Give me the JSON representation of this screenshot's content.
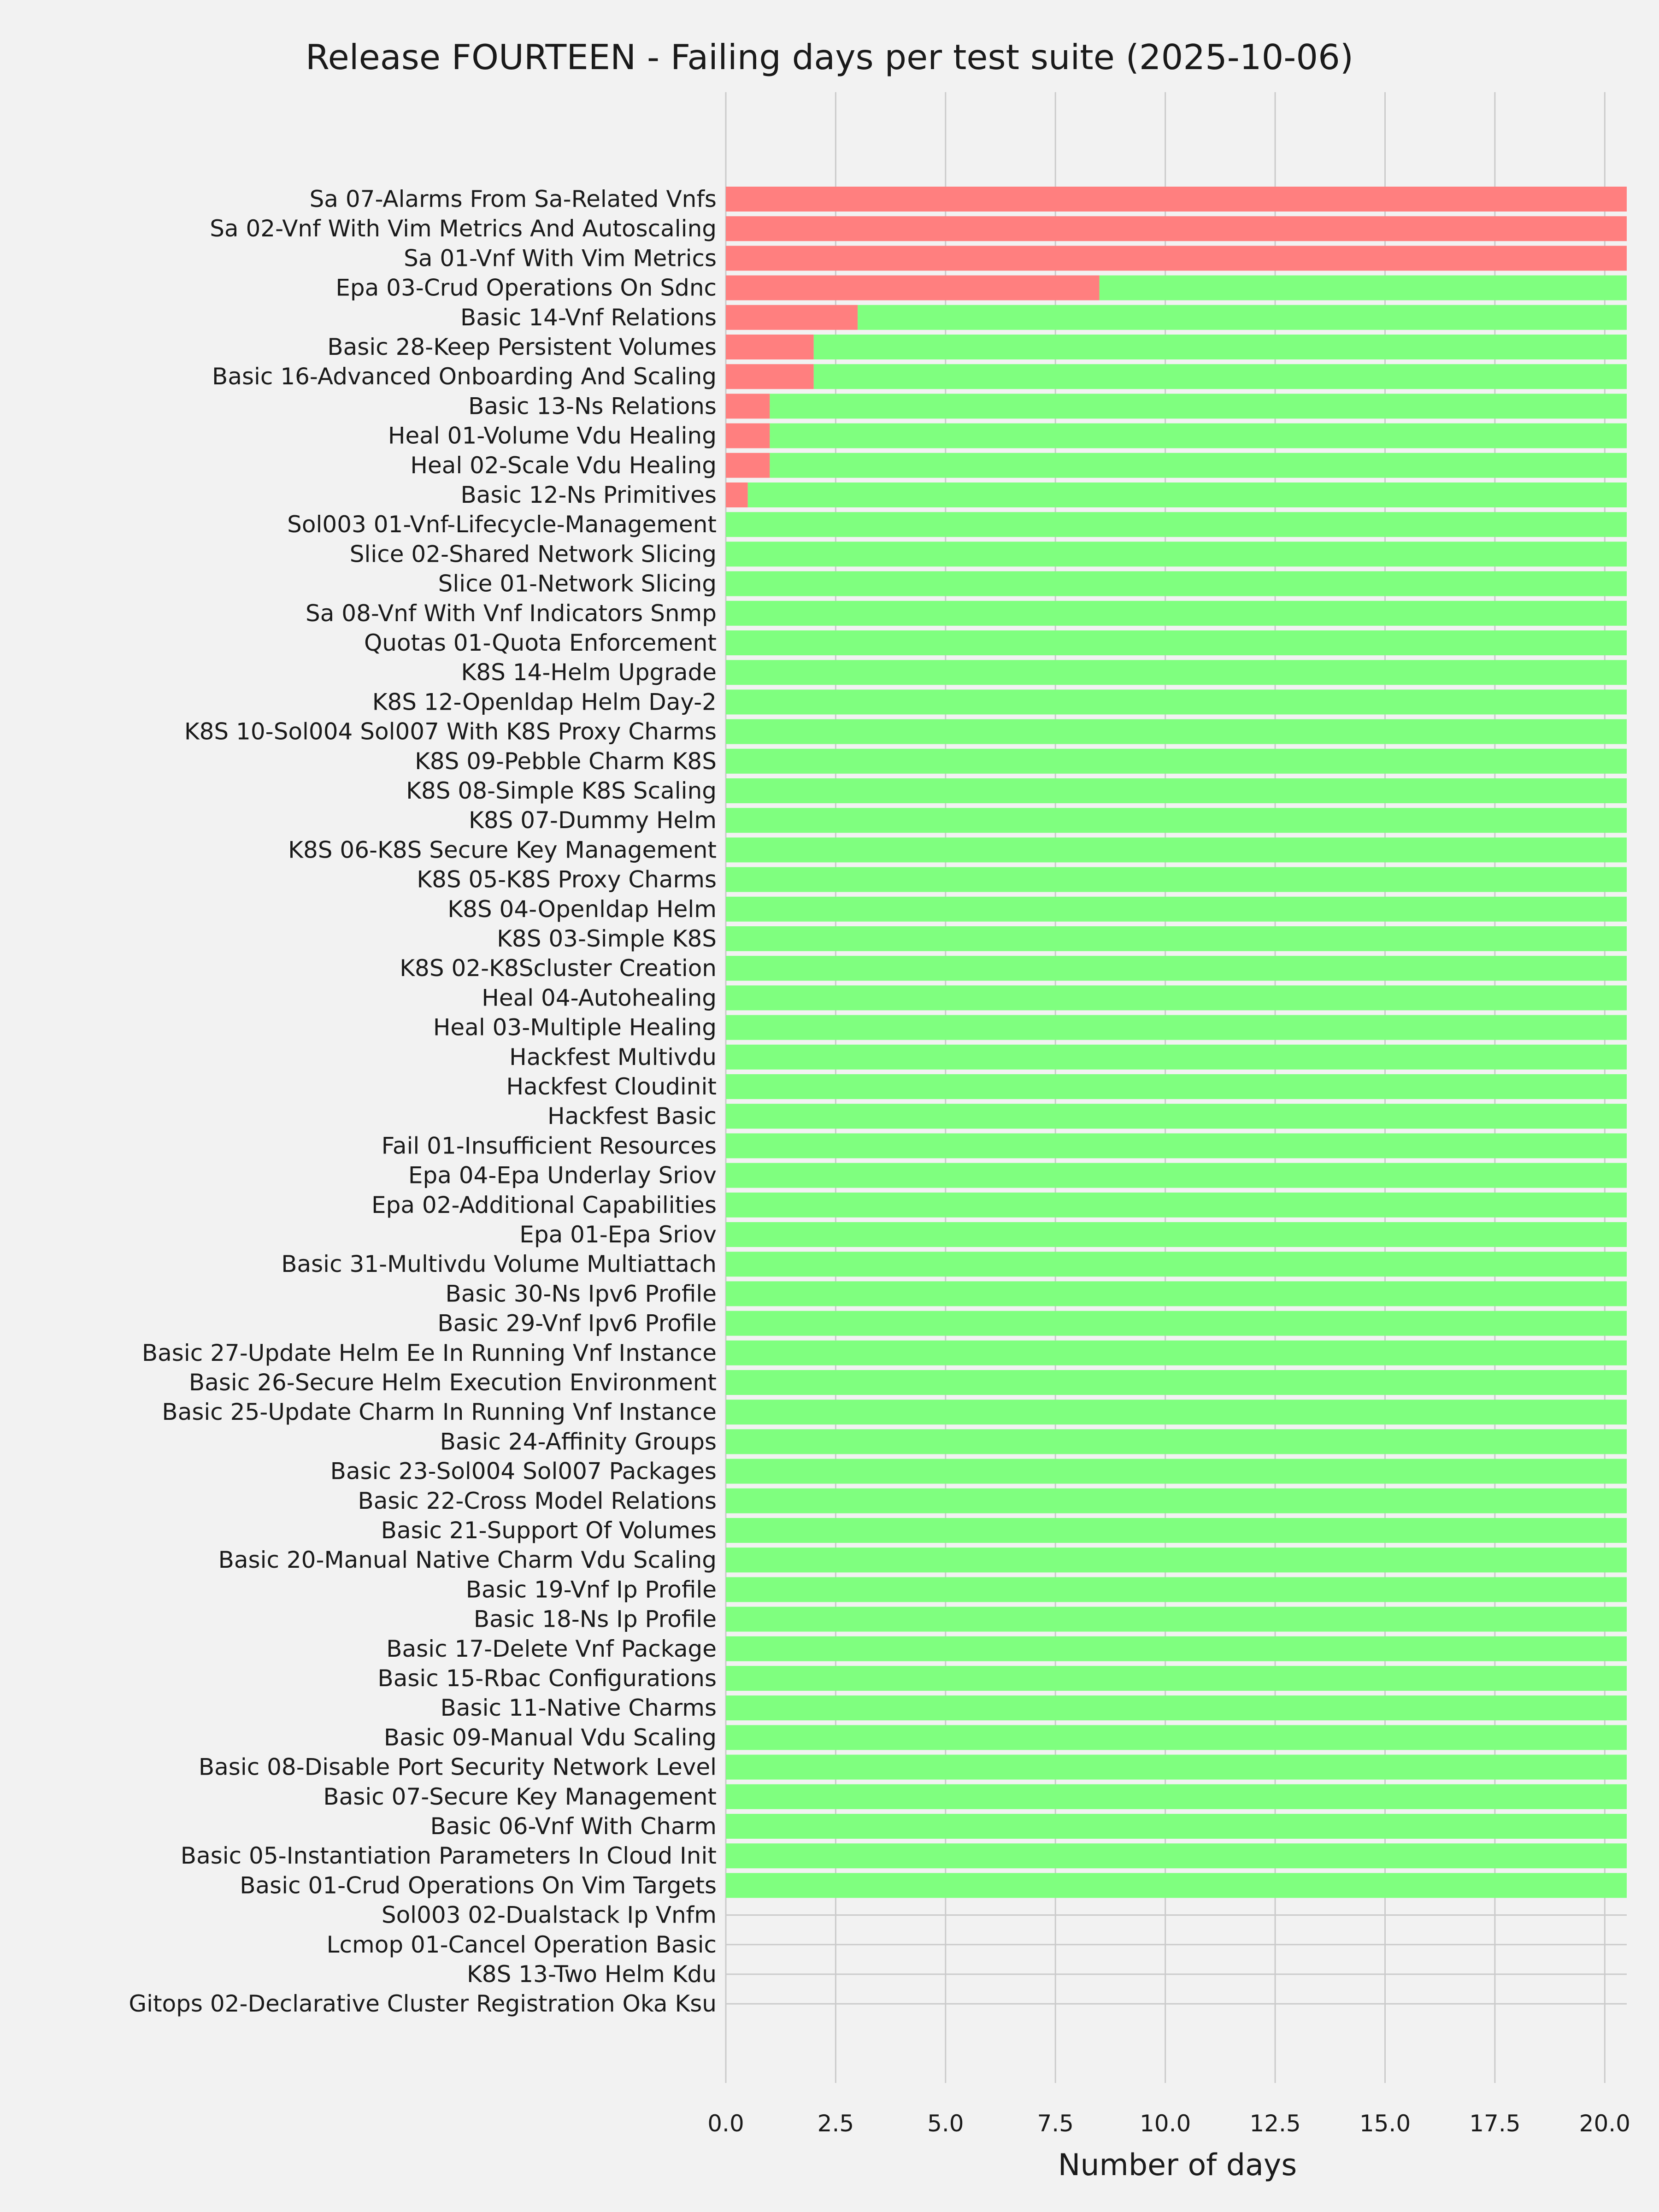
{
  "chart_data": {
    "type": "bar",
    "orientation": "horizontal",
    "stacked": true,
    "title": "Release FOURTEEN - Failing days per test suite (2025-10-06)",
    "xlabel": "Number of days",
    "ylabel": "",
    "xlim": [
      0,
      20.5
    ],
    "xticks": [
      "0.0",
      "2.5",
      "5.0",
      "7.5",
      "10.0",
      "12.5",
      "15.0",
      "17.5",
      "20.0"
    ],
    "grid": true,
    "legend": "none",
    "categories": [
      "Sa 07-Alarms From Sa-Related Vnfs",
      "Sa 02-Vnf With Vim Metrics And Autoscaling",
      "Sa 01-Vnf With Vim Metrics",
      "Epa 03-Crud Operations On Sdnc",
      "Basic 14-Vnf Relations",
      "Basic 28-Keep Persistent Volumes",
      "Basic 16-Advanced Onboarding And Scaling",
      "Basic 13-Ns Relations",
      "Heal 01-Volume Vdu Healing",
      "Heal 02-Scale Vdu Healing",
      "Basic 12-Ns Primitives",
      "Sol003 01-Vnf-Lifecycle-Management",
      "Slice 02-Shared Network Slicing",
      "Slice 01-Network Slicing",
      "Sa 08-Vnf With Vnf Indicators Snmp",
      "Quotas 01-Quota Enforcement",
      "K8S 14-Helm Upgrade",
      "K8S 12-Openldap Helm Day-2",
      "K8S 10-Sol004 Sol007 With K8S Proxy Charms",
      "K8S 09-Pebble Charm K8S",
      "K8S 08-Simple K8S Scaling",
      "K8S 07-Dummy Helm",
      "K8S 06-K8S Secure Key Management",
      "K8S 05-K8S Proxy Charms",
      "K8S 04-Openldap Helm",
      "K8S 03-Simple K8S",
      "K8S 02-K8Scluster Creation",
      "Heal 04-Autohealing",
      "Heal 03-Multiple Healing",
      "Hackfest Multivdu",
      "Hackfest Cloudinit",
      "Hackfest Basic",
      "Fail 01-Insufficient Resources",
      "Epa 04-Epa Underlay Sriov",
      "Epa 02-Additional Capabilities",
      "Epa 01-Epa Sriov",
      "Basic 31-Multivdu Volume Multiattach",
      "Basic 30-Ns Ipv6 Profile",
      "Basic 29-Vnf Ipv6 Profile",
      "Basic 27-Update Helm Ee In Running Vnf Instance",
      "Basic 26-Secure Helm Execution Environment",
      "Basic 25-Update Charm In Running Vnf Instance",
      "Basic 24-Affinity Groups",
      "Basic 23-Sol004 Sol007 Packages",
      "Basic 22-Cross Model Relations",
      "Basic 21-Support Of Volumes",
      "Basic 20-Manual Native Charm Vdu Scaling",
      "Basic 19-Vnf Ip Profile",
      "Basic 18-Ns Ip Profile",
      "Basic 17-Delete Vnf Package",
      "Basic 15-Rbac Configurations",
      "Basic 11-Native Charms",
      "Basic 09-Manual Vdu Scaling",
      "Basic 08-Disable Port Security Network Level",
      "Basic 07-Secure Key Management",
      "Basic 06-Vnf With Charm",
      "Basic 05-Instantiation Parameters In Cloud Init",
      "Basic 01-Crud Operations On Vim Targets",
      "Sol003 02-Dualstack Ip Vnfm",
      "Lcmop 01-Cancel Operation Basic",
      "K8S 13-Two Helm Kdu",
      "Gitops 02-Declarative Cluster Registration Oka Ksu"
    ],
    "series": [
      {
        "color": "#ff7f7f",
        "values": [
          20.5,
          20.5,
          20.5,
          8.5,
          3,
          2,
          2,
          1,
          1,
          1,
          0.5,
          0,
          0,
          0,
          0,
          0,
          0,
          0,
          0,
          0,
          0,
          0,
          0,
          0,
          0,
          0,
          0,
          0,
          0,
          0,
          0,
          0,
          0,
          0,
          0,
          0,
          0,
          0,
          0,
          0,
          0,
          0,
          0,
          0,
          0,
          0,
          0,
          0,
          0,
          0,
          0,
          0,
          0,
          0,
          0,
          0,
          0,
          0,
          0,
          0,
          0,
          0
        ]
      },
      {
        "color": "#7fff7f",
        "values": [
          0,
          0,
          0,
          12,
          17.5,
          18.5,
          18.5,
          19.5,
          19.5,
          19.5,
          20,
          20.5,
          20.5,
          20.5,
          20.5,
          20.5,
          20.5,
          20.5,
          20.5,
          20.5,
          20.5,
          20.5,
          20.5,
          20.5,
          20.5,
          20.5,
          20.5,
          20.5,
          20.5,
          20.5,
          20.5,
          20.5,
          20.5,
          20.5,
          20.5,
          20.5,
          20.5,
          20.5,
          20.5,
          20.5,
          20.5,
          20.5,
          20.5,
          20.5,
          20.5,
          20.5,
          20.5,
          20.5,
          20.5,
          20.5,
          20.5,
          20.5,
          20.5,
          20.5,
          20.5,
          20.5,
          20.5,
          20.5,
          0,
          0,
          0,
          0
        ]
      }
    ]
  }
}
